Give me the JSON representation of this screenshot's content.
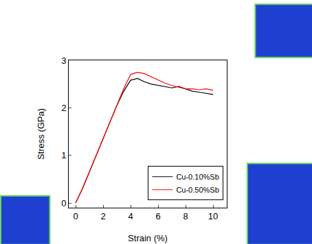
{
  "chart_data": {
    "type": "line",
    "x_label": "Strain (%)",
    "y_label": "Stress (GPa)",
    "x": [
      0,
      0.5,
      1,
      1.5,
      2,
      2.5,
      3,
      3.5,
      4,
      4.5,
      5,
      5.5,
      6,
      6.5,
      7,
      7.5,
      8,
      8.5,
      9,
      9.5,
      10
    ],
    "series": [
      {
        "name": "Cu-0.10%Sb",
        "color": "#000000",
        "values": [
          0,
          0.3,
          0.65,
          1.0,
          1.35,
          1.7,
          2.05,
          2.35,
          2.58,
          2.62,
          2.55,
          2.5,
          2.47,
          2.45,
          2.42,
          2.45,
          2.4,
          2.35,
          2.33,
          2.3,
          2.28
        ]
      },
      {
        "name": "Cu-0.50%Sb",
        "color": "#ff0000",
        "values": [
          0,
          0.3,
          0.65,
          1.0,
          1.35,
          1.7,
          2.05,
          2.4,
          2.7,
          2.75,
          2.72,
          2.65,
          2.58,
          2.52,
          2.47,
          2.43,
          2.4,
          2.4,
          2.38,
          2.4,
          2.37
        ]
      }
    ],
    "xlim": [
      -0.5,
      11
    ],
    "ylim": [
      -0.1,
      3
    ],
    "xticks": [
      0,
      2,
      4,
      6,
      8,
      10
    ],
    "yticks": [
      0,
      1,
      2,
      3
    ],
    "grid": false,
    "legend": "lower right"
  }
}
